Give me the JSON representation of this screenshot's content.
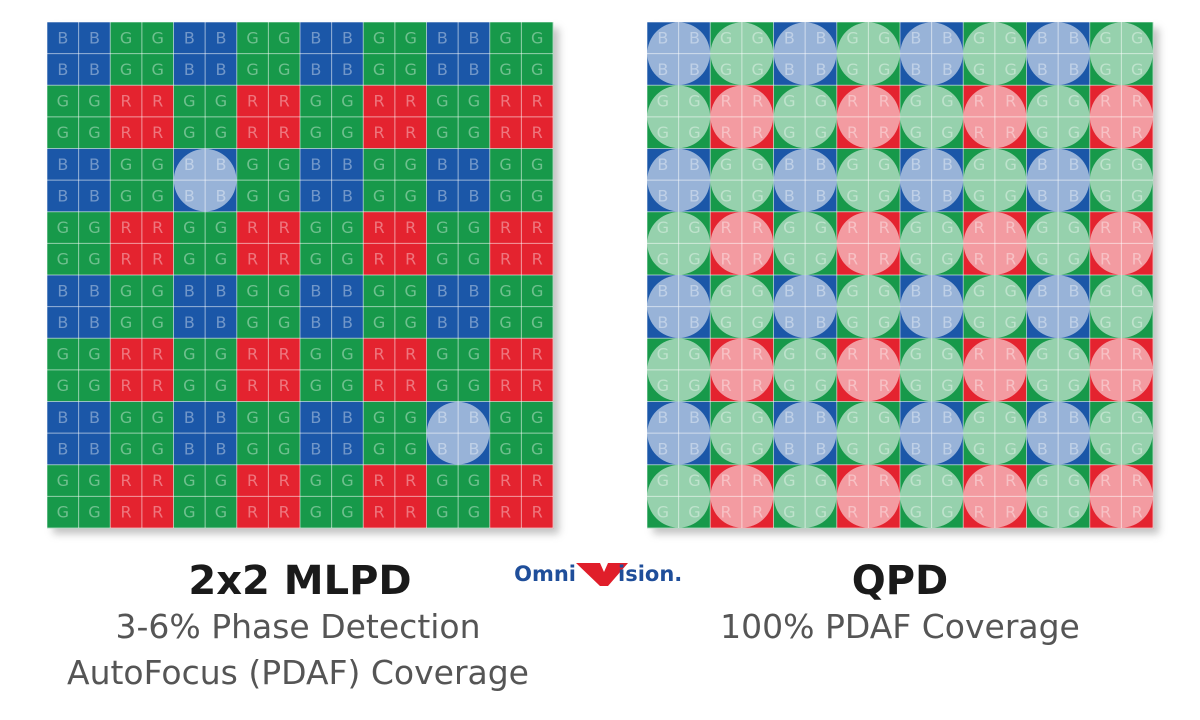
{
  "left": {
    "grid": [
      [
        "B",
        "B",
        "G",
        "G",
        "B",
        "B",
        "G",
        "G",
        "B",
        "B",
        "G",
        "G",
        "B",
        "B",
        "G",
        "G"
      ],
      [
        "B",
        "B",
        "G",
        "G",
        "B",
        "B",
        "G",
        "G",
        "B",
        "B",
        "G",
        "G",
        "B",
        "B",
        "G",
        "G"
      ],
      [
        "G",
        "G",
        "R",
        "R",
        "G",
        "G",
        "R",
        "R",
        "G",
        "G",
        "R",
        "R",
        "G",
        "G",
        "R",
        "R"
      ],
      [
        "G",
        "G",
        "R",
        "R",
        "G",
        "G",
        "R",
        "R",
        "G",
        "G",
        "R",
        "R",
        "G",
        "G",
        "R",
        "R"
      ],
      [
        "B",
        "B",
        "G",
        "G",
        "B",
        "B",
        "G",
        "G",
        "B",
        "B",
        "G",
        "G",
        "B",
        "B",
        "G",
        "G"
      ],
      [
        "B",
        "B",
        "G",
        "G",
        "B",
        "B",
        "G",
        "G",
        "B",
        "B",
        "G",
        "G",
        "B",
        "B",
        "G",
        "G"
      ],
      [
        "G",
        "G",
        "R",
        "R",
        "G",
        "G",
        "R",
        "R",
        "G",
        "G",
        "R",
        "R",
        "G",
        "G",
        "R",
        "R"
      ],
      [
        "G",
        "G",
        "R",
        "R",
        "G",
        "G",
        "R",
        "R",
        "G",
        "G",
        "R",
        "R",
        "G",
        "G",
        "R",
        "R"
      ],
      [
        "B",
        "B",
        "G",
        "G",
        "B",
        "B",
        "G",
        "G",
        "B",
        "B",
        "G",
        "G",
        "B",
        "B",
        "G",
        "G"
      ],
      [
        "B",
        "B",
        "G",
        "G",
        "B",
        "B",
        "G",
        "G",
        "B",
        "B",
        "G",
        "G",
        "B",
        "B",
        "G",
        "G"
      ],
      [
        "G",
        "G",
        "R",
        "R",
        "G",
        "G",
        "R",
        "R",
        "G",
        "G",
        "R",
        "R",
        "G",
        "G",
        "R",
        "R"
      ],
      [
        "G",
        "G",
        "R",
        "R",
        "G",
        "G",
        "R",
        "R",
        "G",
        "G",
        "R",
        "R",
        "G",
        "G",
        "R",
        "R"
      ],
      [
        "B",
        "B",
        "G",
        "G",
        "B",
        "B",
        "G",
        "G",
        "B",
        "B",
        "G",
        "G",
        "B",
        "B",
        "G",
        "G"
      ],
      [
        "B",
        "B",
        "G",
        "G",
        "B",
        "B",
        "G",
        "G",
        "B",
        "B",
        "G",
        "G",
        "B",
        "B",
        "G",
        "G"
      ],
      [
        "G",
        "G",
        "R",
        "R",
        "G",
        "G",
        "R",
        "R",
        "G",
        "G",
        "R",
        "R",
        "G",
        "G",
        "R",
        "R"
      ],
      [
        "G",
        "G",
        "R",
        "R",
        "G",
        "G",
        "R",
        "R",
        "G",
        "G",
        "R",
        "R",
        "G",
        "G",
        "R",
        "R"
      ]
    ],
    "title": "2x2 MLPD",
    "subtitle": [
      "3-6% Phase Detection",
      "AutoFocus (PDAF) Coverage"
    ]
  },
  "right": {
    "grid": [
      [
        "B",
        "B",
        "G",
        "G",
        "B",
        "B",
        "G",
        "G",
        "B",
        "B",
        "G",
        "G",
        "B",
        "B",
        "G",
        "G"
      ],
      [
        "B",
        "B",
        "G",
        "G",
        "B",
        "B",
        "G",
        "G",
        "B",
        "B",
        "G",
        "G",
        "B",
        "B",
        "G",
        "G"
      ],
      [
        "G",
        "G",
        "R",
        "R",
        "G",
        "G",
        "R",
        "R",
        "G",
        "G",
        "R",
        "R",
        "G",
        "G",
        "R",
        "R"
      ],
      [
        "G",
        "G",
        "R",
        "R",
        "G",
        "G",
        "R",
        "R",
        "G",
        "G",
        "R",
        "R",
        "G",
        "G",
        "R",
        "R"
      ],
      [
        "B",
        "B",
        "G",
        "G",
        "B",
        "B",
        "G",
        "G",
        "B",
        "B",
        "G",
        "G",
        "B",
        "B",
        "G",
        "G"
      ],
      [
        "B",
        "B",
        "G",
        "G",
        "B",
        "B",
        "G",
        "G",
        "B",
        "B",
        "G",
        "G",
        "B",
        "B",
        "G",
        "G"
      ],
      [
        "G",
        "G",
        "R",
        "R",
        "G",
        "G",
        "R",
        "R",
        "G",
        "G",
        "R",
        "R",
        "G",
        "G",
        "R",
        "R"
      ],
      [
        "G",
        "G",
        "R",
        "R",
        "G",
        "G",
        "R",
        "R",
        "G",
        "G",
        "R",
        "R",
        "G",
        "G",
        "R",
        "R"
      ],
      [
        "B",
        "B",
        "G",
        "G",
        "B",
        "B",
        "G",
        "G",
        "B",
        "B",
        "G",
        "G",
        "B",
        "B",
        "G",
        "G"
      ],
      [
        "B",
        "B",
        "G",
        "G",
        "B",
        "B",
        "G",
        "G",
        "B",
        "B",
        "G",
        "G",
        "B",
        "B",
        "G",
        "G"
      ],
      [
        "G",
        "G",
        "R",
        "R",
        "G",
        "G",
        "R",
        "R",
        "G",
        "G",
        "R",
        "R",
        "G",
        "G",
        "R",
        "R"
      ],
      [
        "G",
        "G",
        "R",
        "R",
        "G",
        "G",
        "R",
        "R",
        "G",
        "G",
        "R",
        "R",
        "G",
        "G",
        "R",
        "R"
      ],
      [
        "B",
        "B",
        "G",
        "G",
        "B",
        "B",
        "G",
        "G",
        "B",
        "B",
        "G",
        "G",
        "B",
        "B",
        "G",
        "G"
      ],
      [
        "B",
        "B",
        "G",
        "G",
        "B",
        "B",
        "G",
        "G",
        "B",
        "B",
        "G",
        "G",
        "B",
        "B",
        "G",
        "G"
      ],
      [
        "G",
        "G",
        "R",
        "R",
        "G",
        "G",
        "R",
        "R",
        "G",
        "G",
        "R",
        "R",
        "G",
        "G",
        "R",
        "R"
      ],
      [
        "G",
        "G",
        "R",
        "R",
        "G",
        "G",
        "R",
        "R",
        "G",
        "G",
        "R",
        "R",
        "G",
        "G",
        "R",
        "R"
      ]
    ],
    "title": "QPD",
    "subtitle": [
      "100% PDAF Coverage"
    ]
  },
  "logo": {
    "left": "Omni",
    "right": "ision."
  }
}
